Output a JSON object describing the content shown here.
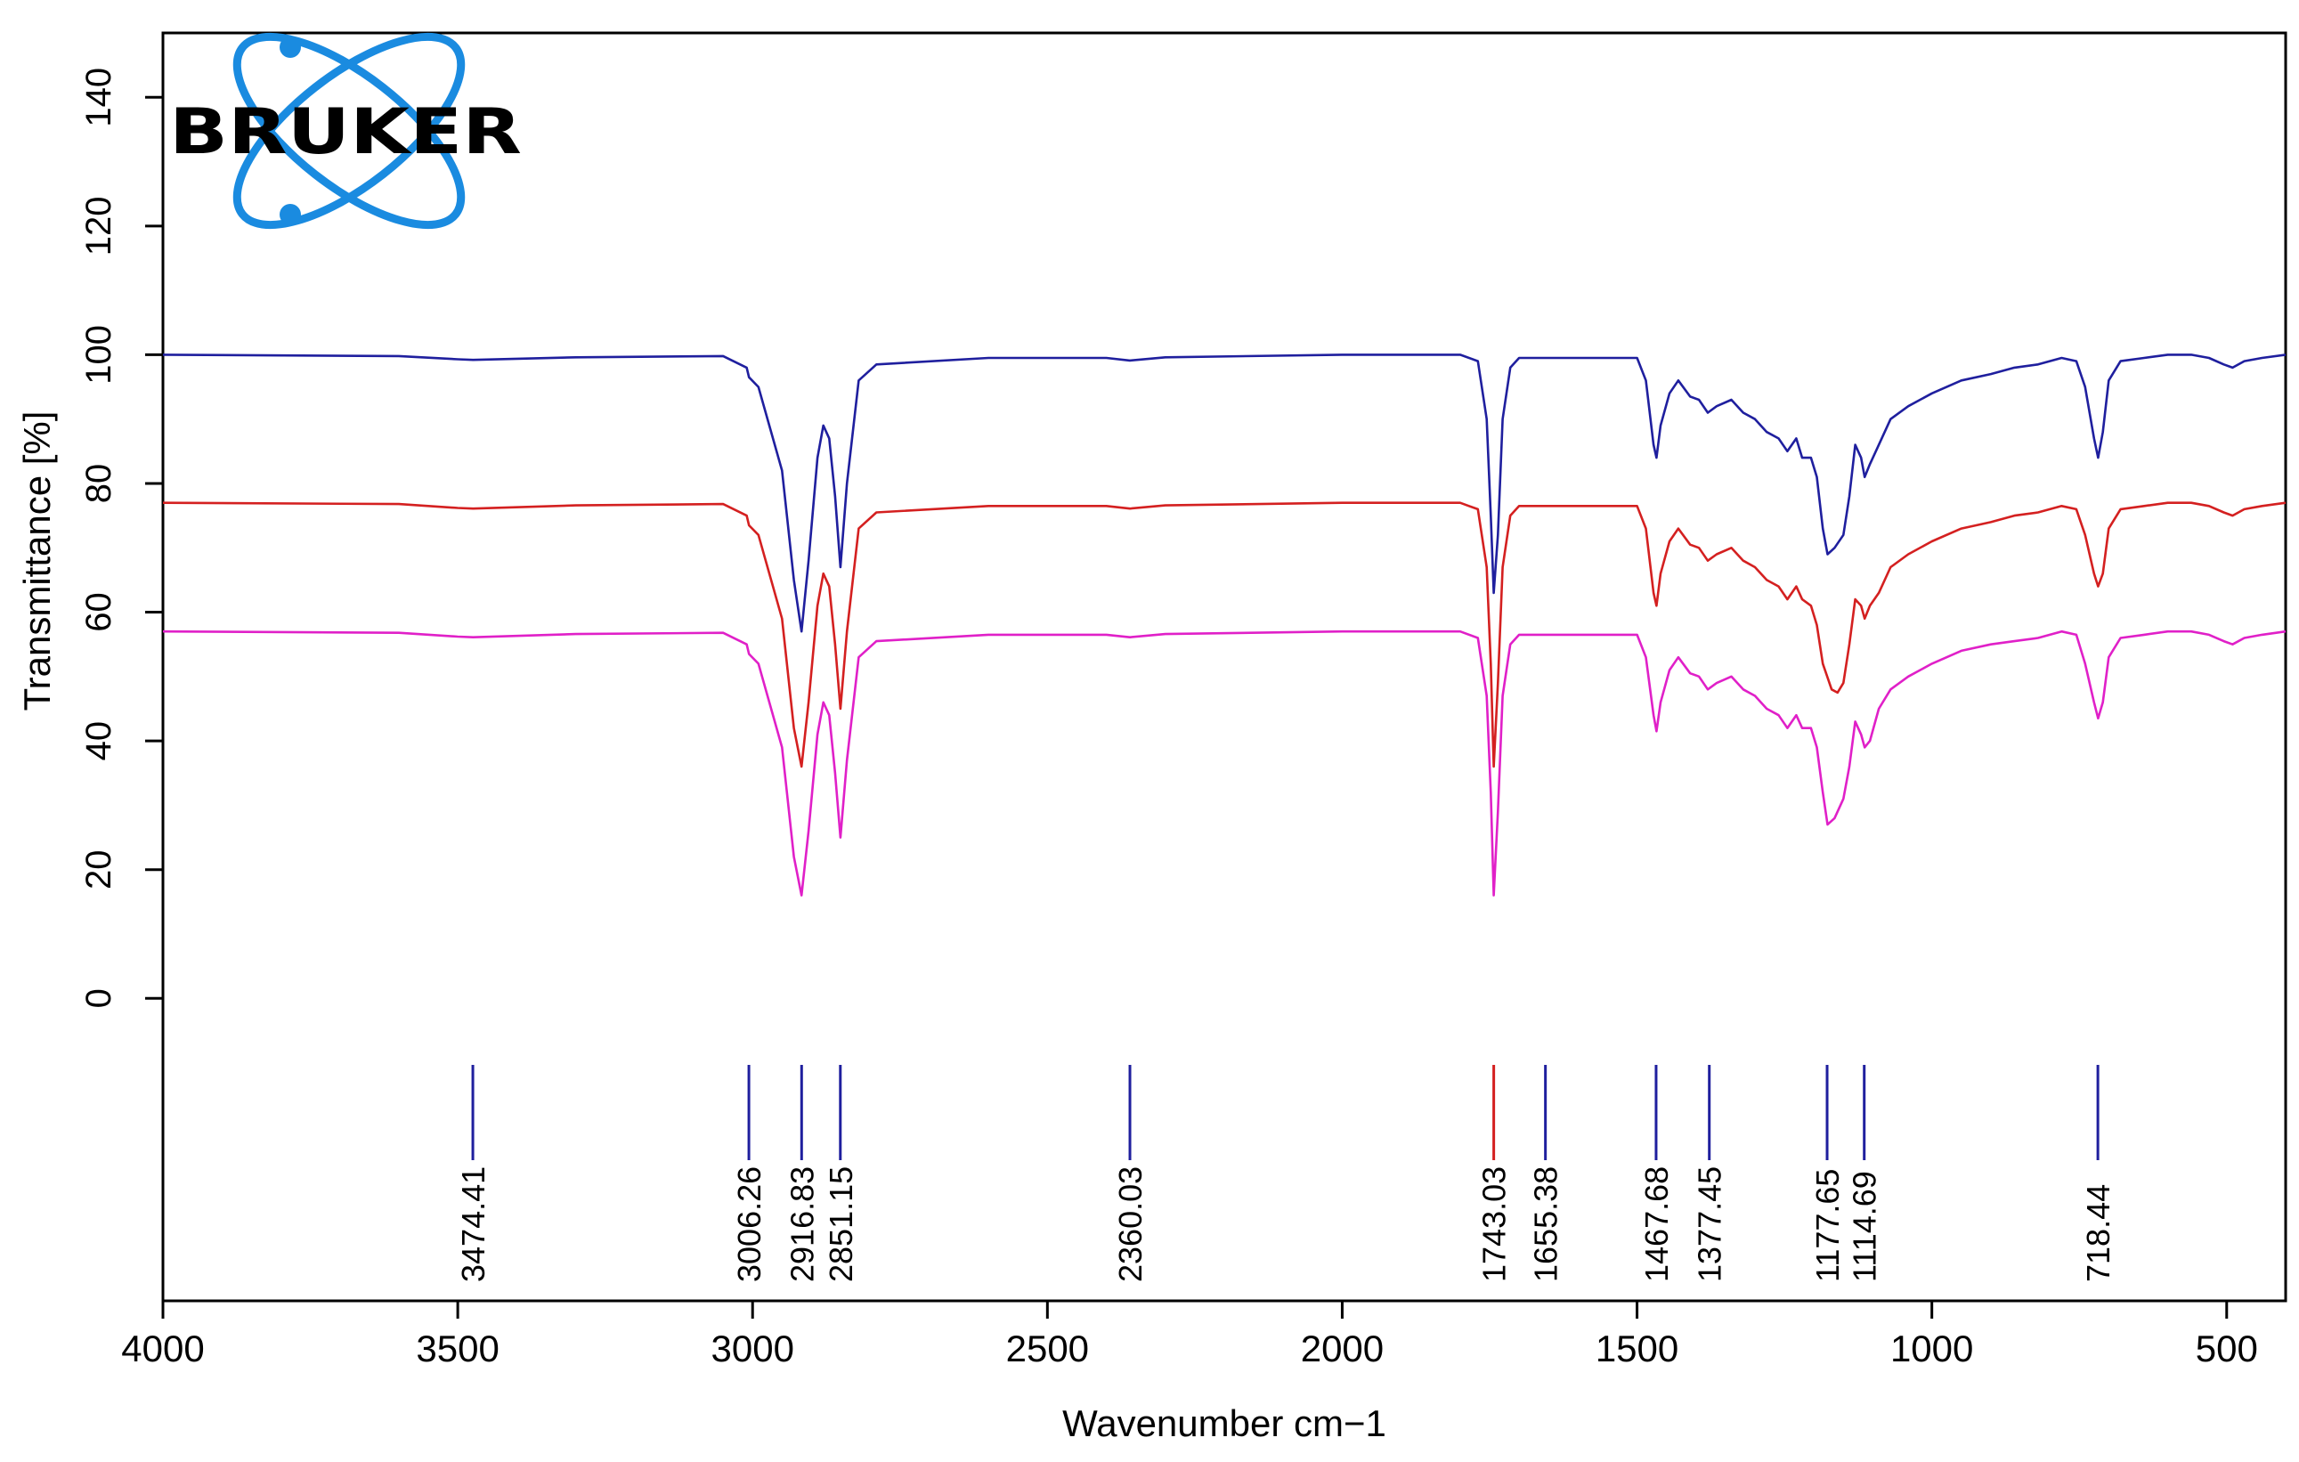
{
  "chart_data": {
    "type": "line",
    "title": "",
    "xlabel": "Wavenumber cm−1",
    "ylabel": "Transmittance [%]",
    "xlim": [
      4000,
      400
    ],
    "ylim": [
      -47,
      150
    ],
    "x_ticks": [
      4000,
      3500,
      3000,
      2500,
      2000,
      1500,
      1000,
      500
    ],
    "y_ticks": [
      0,
      20,
      40,
      60,
      80,
      100,
      120,
      140
    ],
    "grid": false,
    "legend": "none",
    "series": [
      {
        "color": "#1f1f9e",
        "points": [
          [
            4000,
            100
          ],
          [
            3600,
            99.8
          ],
          [
            3500,
            99.3
          ],
          [
            3474,
            99.2
          ],
          [
            3300,
            99.6
          ],
          [
            3050,
            99.8
          ],
          [
            3010,
            98
          ],
          [
            3006,
            96.5
          ],
          [
            2990,
            95
          ],
          [
            2950,
            82
          ],
          [
            2930,
            65
          ],
          [
            2917,
            57
          ],
          [
            2905,
            68
          ],
          [
            2890,
            84
          ],
          [
            2880,
            89
          ],
          [
            2870,
            87
          ],
          [
            2860,
            78
          ],
          [
            2851,
            67
          ],
          [
            2840,
            80
          ],
          [
            2820,
            96
          ],
          [
            2790,
            98.5
          ],
          [
            2600,
            99.5
          ],
          [
            2400,
            99.5
          ],
          [
            2360,
            99.1
          ],
          [
            2300,
            99.6
          ],
          [
            2000,
            100
          ],
          [
            1800,
            100
          ],
          [
            1770,
            99
          ],
          [
            1755,
            90
          ],
          [
            1748,
            75
          ],
          [
            1743,
            63
          ],
          [
            1736,
            72
          ],
          [
            1728,
            90
          ],
          [
            1715,
            98
          ],
          [
            1700,
            99.5
          ],
          [
            1500,
            99.5
          ],
          [
            1485,
            96
          ],
          [
            1472,
            86
          ],
          [
            1467,
            84
          ],
          [
            1460,
            89
          ],
          [
            1445,
            94
          ],
          [
            1430,
            96
          ],
          [
            1410,
            93.5
          ],
          [
            1395,
            93
          ],
          [
            1380,
            91
          ],
          [
            1365,
            92
          ],
          [
            1340,
            93
          ],
          [
            1320,
            91
          ],
          [
            1300,
            90
          ],
          [
            1280,
            88
          ],
          [
            1260,
            87
          ],
          [
            1245,
            85
          ],
          [
            1230,
            87
          ],
          [
            1220,
            84
          ],
          [
            1205,
            84
          ],
          [
            1195,
            81
          ],
          [
            1185,
            73
          ],
          [
            1177,
            69
          ],
          [
            1165,
            70
          ],
          [
            1150,
            72
          ],
          [
            1140,
            78
          ],
          [
            1130,
            86
          ],
          [
            1120,
            84
          ],
          [
            1114,
            81
          ],
          [
            1105,
            83
          ],
          [
            1090,
            86
          ],
          [
            1070,
            90
          ],
          [
            1040,
            92
          ],
          [
            1000,
            94
          ],
          [
            950,
            96
          ],
          [
            900,
            97
          ],
          [
            860,
            98
          ],
          [
            820,
            98.5
          ],
          [
            780,
            99.5
          ],
          [
            755,
            99
          ],
          [
            740,
            95
          ],
          [
            725,
            87
          ],
          [
            718,
            84
          ],
          [
            710,
            88
          ],
          [
            700,
            96
          ],
          [
            680,
            99
          ],
          [
            640,
            99.5
          ],
          [
            600,
            100
          ],
          [
            560,
            100
          ],
          [
            530,
            99.5
          ],
          [
            505,
            98.5
          ],
          [
            490,
            98
          ],
          [
            470,
            99
          ],
          [
            440,
            99.5
          ],
          [
            400,
            100
          ]
        ]
      },
      {
        "color": "#d42020",
        "points": [
          [
            4000,
            77
          ],
          [
            3600,
            76.8
          ],
          [
            3500,
            76.2
          ],
          [
            3474,
            76.1
          ],
          [
            3300,
            76.6
          ],
          [
            3050,
            76.8
          ],
          [
            3010,
            75
          ],
          [
            3006,
            73.5
          ],
          [
            2990,
            72
          ],
          [
            2950,
            59
          ],
          [
            2930,
            42
          ],
          [
            2917,
            36
          ],
          [
            2905,
            46
          ],
          [
            2890,
            61
          ],
          [
            2880,
            66
          ],
          [
            2870,
            64
          ],
          [
            2860,
            55
          ],
          [
            2851,
            45
          ],
          [
            2840,
            57
          ],
          [
            2820,
            73
          ],
          [
            2790,
            75.5
          ],
          [
            2600,
            76.5
          ],
          [
            2400,
            76.5
          ],
          [
            2360,
            76.1
          ],
          [
            2300,
            76.6
          ],
          [
            2000,
            77
          ],
          [
            1800,
            77
          ],
          [
            1770,
            76
          ],
          [
            1755,
            67
          ],
          [
            1748,
            52
          ],
          [
            1743,
            36
          ],
          [
            1736,
            49
          ],
          [
            1728,
            67
          ],
          [
            1715,
            75
          ],
          [
            1700,
            76.5
          ],
          [
            1500,
            76.5
          ],
          [
            1485,
            73
          ],
          [
            1472,
            63
          ],
          [
            1467,
            61
          ],
          [
            1460,
            66
          ],
          [
            1445,
            71
          ],
          [
            1430,
            73
          ],
          [
            1410,
            70.5
          ],
          [
            1395,
            70
          ],
          [
            1380,
            68
          ],
          [
            1365,
            69
          ],
          [
            1340,
            70
          ],
          [
            1320,
            68
          ],
          [
            1300,
            67
          ],
          [
            1280,
            65
          ],
          [
            1260,
            64
          ],
          [
            1245,
            62
          ],
          [
            1230,
            64
          ],
          [
            1220,
            62
          ],
          [
            1205,
            61
          ],
          [
            1195,
            58
          ],
          [
            1185,
            52
          ],
          [
            1170,
            48
          ],
          [
            1160,
            47.5
          ],
          [
            1150,
            49
          ],
          [
            1140,
            55
          ],
          [
            1130,
            62
          ],
          [
            1120,
            61
          ],
          [
            1114,
            59
          ],
          [
            1105,
            61
          ],
          [
            1090,
            63
          ],
          [
            1070,
            67
          ],
          [
            1040,
            69
          ],
          [
            1000,
            71
          ],
          [
            950,
            73
          ],
          [
            900,
            74
          ],
          [
            860,
            75
          ],
          [
            820,
            75.5
          ],
          [
            780,
            76.5
          ],
          [
            755,
            76
          ],
          [
            740,
            72
          ],
          [
            725,
            66
          ],
          [
            718,
            64
          ],
          [
            710,
            66
          ],
          [
            700,
            73
          ],
          [
            680,
            76
          ],
          [
            640,
            76.5
          ],
          [
            600,
            77
          ],
          [
            560,
            77
          ],
          [
            530,
            76.5
          ],
          [
            505,
            75.5
          ],
          [
            490,
            75
          ],
          [
            470,
            76
          ],
          [
            440,
            76.5
          ],
          [
            400,
            77
          ]
        ]
      },
      {
        "color": "#e020c8",
        "points": [
          [
            4000,
            57
          ],
          [
            3600,
            56.8
          ],
          [
            3500,
            56.2
          ],
          [
            3474,
            56.1
          ],
          [
            3300,
            56.6
          ],
          [
            3050,
            56.8
          ],
          [
            3010,
            55
          ],
          [
            3006,
            53.5
          ],
          [
            2990,
            52
          ],
          [
            2950,
            39
          ],
          [
            2930,
            22
          ],
          [
            2917,
            16
          ],
          [
            2905,
            26
          ],
          [
            2890,
            41
          ],
          [
            2880,
            46
          ],
          [
            2870,
            44
          ],
          [
            2860,
            35
          ],
          [
            2851,
            25
          ],
          [
            2840,
            37
          ],
          [
            2820,
            53
          ],
          [
            2790,
            55.5
          ],
          [
            2600,
            56.5
          ],
          [
            2400,
            56.5
          ],
          [
            2360,
            56.1
          ],
          [
            2300,
            56.6
          ],
          [
            2000,
            57
          ],
          [
            1800,
            57
          ],
          [
            1770,
            56
          ],
          [
            1755,
            47
          ],
          [
            1748,
            32
          ],
          [
            1743,
            16
          ],
          [
            1736,
            29
          ],
          [
            1728,
            47
          ],
          [
            1715,
            55
          ],
          [
            1700,
            56.5
          ],
          [
            1500,
            56.5
          ],
          [
            1485,
            53
          ],
          [
            1472,
            44
          ],
          [
            1467,
            41.5
          ],
          [
            1460,
            46
          ],
          [
            1445,
            51
          ],
          [
            1430,
            53
          ],
          [
            1410,
            50.5
          ],
          [
            1395,
            50
          ],
          [
            1380,
            48
          ],
          [
            1365,
            49
          ],
          [
            1340,
            50
          ],
          [
            1320,
            48
          ],
          [
            1300,
            47
          ],
          [
            1280,
            45
          ],
          [
            1260,
            44
          ],
          [
            1245,
            42
          ],
          [
            1230,
            44
          ],
          [
            1220,
            42
          ],
          [
            1205,
            42
          ],
          [
            1195,
            39
          ],
          [
            1185,
            32
          ],
          [
            1177,
            27
          ],
          [
            1165,
            28
          ],
          [
            1150,
            31
          ],
          [
            1140,
            36
          ],
          [
            1130,
            43
          ],
          [
            1120,
            41
          ],
          [
            1114,
            39
          ],
          [
            1105,
            40
          ],
          [
            1090,
            45
          ],
          [
            1070,
            48
          ],
          [
            1040,
            50
          ],
          [
            1000,
            52
          ],
          [
            950,
            54
          ],
          [
            900,
            55
          ],
          [
            860,
            55.5
          ],
          [
            820,
            56
          ],
          [
            780,
            57
          ],
          [
            755,
            56.5
          ],
          [
            740,
            52
          ],
          [
            725,
            46
          ],
          [
            718,
            43.5
          ],
          [
            710,
            46
          ],
          [
            700,
            53
          ],
          [
            680,
            56
          ],
          [
            640,
            56.5
          ],
          [
            600,
            57
          ],
          [
            560,
            57
          ],
          [
            530,
            56.5
          ],
          [
            505,
            55.5
          ],
          [
            490,
            55
          ],
          [
            470,
            56
          ],
          [
            440,
            56.5
          ],
          [
            400,
            57
          ]
        ]
      }
    ],
    "peak_markers": [
      {
        "x": 3474.41,
        "label": "3474.41",
        "color": "#1f1f9e"
      },
      {
        "x": 3006.26,
        "label": "3006.26",
        "color": "#1f1f9e"
      },
      {
        "x": 2916.83,
        "label": "2916.83",
        "color": "#1f1f9e"
      },
      {
        "x": 2851.15,
        "label": "2851.15",
        "color": "#1f1f9e"
      },
      {
        "x": 2360.03,
        "label": "2360.03",
        "color": "#1f1f9e"
      },
      {
        "x": 1743.03,
        "label": "1743.03",
        "color": "#d42020"
      },
      {
        "x": 1655.38,
        "label": "1655.38",
        "color": "#1f1f9e"
      },
      {
        "x": 1467.68,
        "label": "1467.68",
        "color": "#1f1f9e"
      },
      {
        "x": 1377.45,
        "label": "1377.45",
        "color": "#1f1f9e"
      },
      {
        "x": 1177.65,
        "label": "1177.65",
        "color": "#1f1f9e"
      },
      {
        "x": 1114.69,
        "label": "1114.69",
        "color": "#1f1f9e"
      },
      {
        "x": 718.44,
        "label": "718.44",
        "color": "#1f1f9e"
      }
    ]
  },
  "logo": {
    "text": "BRUKER",
    "icon": "atom-orbit-icon",
    "color": "#1a8be0"
  }
}
